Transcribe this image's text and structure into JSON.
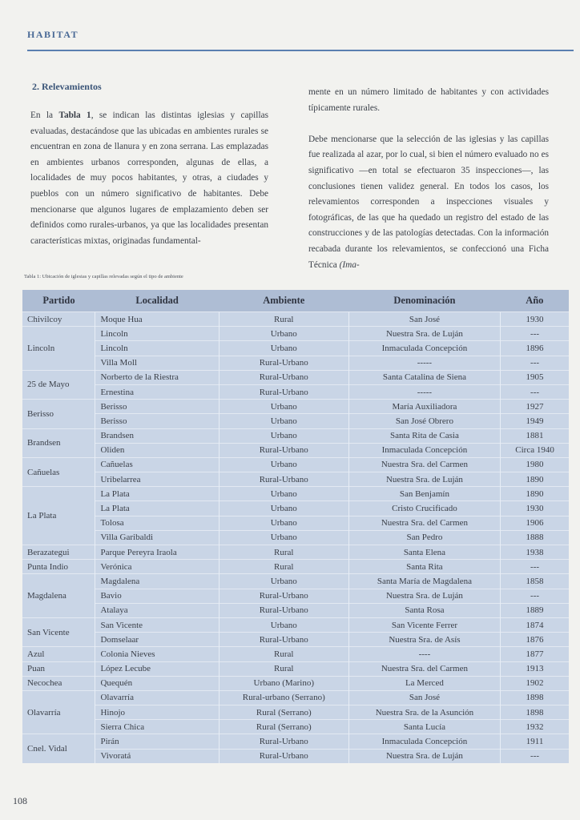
{
  "header": {
    "title": "HABITAT"
  },
  "section": {
    "title": "2. Relevamientos"
  },
  "left_column": {
    "parts": [
      "En la ",
      "Tabla 1",
      ", se indican las distintas iglesias y capillas evaluadas, destacándose que las ubicadas en ambientes rurales se encuentran en zona de llanura y en zona serrana. Las emplazadas en ambientes urbanos corresponden, algunas de ellas, a localidades de muy pocos habitantes, y otras, a ciudades y pueblos con un número significativo de habitantes. Debe mencionarse que algunos lugares de emplazamiento deben ser definidos como rurales-urbanos, ya que las localidades presentan características mixtas, originadas fundamental-"
    ]
  },
  "right_column": {
    "paragraph_1": "mente en un número limitado de habitantes y con actividades típicamente rurales.",
    "paragraph_2": [
      "Debe mencionarse que la selección de las iglesias y las capillas fue realizada al azar, por lo cual, si bien el número evaluado no es significativo —en total se efectuaron 35 inspecciones—, las conclusiones tienen validez general. En todos los casos, los relevamientos corresponden a inspecciones visuales y fotográficas, de las que ha quedado un registro del estado de las construcciones y de las patologías detectadas. Con la información recabada durante los relevamientos, se confeccionó una Ficha Técnica ",
      "(Ima-"
    ]
  },
  "table": {
    "caption": "Tabla 1: Ubicación de iglesias y capillas relevadas según el tipo de ambiente",
    "columns": [
      "Partido",
      "Localidad",
      "Ambiente",
      "Denominación",
      "Año"
    ],
    "groups": [
      {
        "partido": "Chivilcoy",
        "rows": [
          [
            "Moque Hua",
            "Rural",
            "San José",
            "1930"
          ]
        ]
      },
      {
        "partido": "Lincoln",
        "rows": [
          [
            "Lincoln",
            "Urbano",
            "Nuestra Sra. de Luján",
            "---"
          ],
          [
            "Lincoln",
            "Urbano",
            "Inmaculada Concepción",
            "1896"
          ],
          [
            "Villa Moll",
            "Rural-Urbano",
            "-----",
            "---"
          ]
        ]
      },
      {
        "partido": "25 de Mayo",
        "rows": [
          [
            "Norberto de la Riestra",
            "Rural-Urbano",
            "Santa Catalina de Siena",
            "1905"
          ],
          [
            "Ernestina",
            "Rural-Urbano",
            "-----",
            "---"
          ]
        ]
      },
      {
        "partido": "Berisso",
        "rows": [
          [
            "Berisso",
            "Urbano",
            "María Auxiliadora",
            "1927"
          ],
          [
            "Berisso",
            "Urbano",
            "San José Obrero",
            "1949"
          ]
        ]
      },
      {
        "partido": "Brandsen",
        "rows": [
          [
            "Brandsen",
            "Urbano",
            "Santa Rita de Casia",
            "1881"
          ],
          [
            "Oliden",
            "Rural-Urbano",
            "Inmaculada Concepción",
            "Circa 1940"
          ]
        ]
      },
      {
        "partido": "Cañuelas",
        "rows": [
          [
            "Cañuelas",
            "Urbano",
            "Nuestra Sra. del Carmen",
            "1980"
          ],
          [
            "Uribelarrea",
            "Rural-Urbano",
            "Nuestra Sra. de Luján",
            "1890"
          ]
        ]
      },
      {
        "partido": "La Plata",
        "rows": [
          [
            "La Plata",
            "Urbano",
            "San Benjamín",
            "1890"
          ],
          [
            "La Plata",
            "Urbano",
            "Cristo Crucificado",
            "1930"
          ],
          [
            "Tolosa",
            "Urbano",
            "Nuestra Sra. del Carmen",
            "1906"
          ],
          [
            "Villa Garibaldi",
            "Urbano",
            "San Pedro",
            "1888"
          ]
        ]
      },
      {
        "partido": "Berazategui",
        "rows": [
          [
            "Parque Pereyra Iraola",
            "Rural",
            "Santa Elena",
            "1938"
          ]
        ]
      },
      {
        "partido": "Punta Indio",
        "rows": [
          [
            "Verónica",
            "Rural",
            "Santa Rita",
            "---"
          ]
        ]
      },
      {
        "partido": "Magdalena",
        "rows": [
          [
            "Magdalena",
            "Urbano",
            "Santa María de Magdalena",
            "1858"
          ],
          [
            "Bavio",
            "Rural-Urbano",
            "Nuestra Sra. de Luján",
            "---"
          ],
          [
            "Atalaya",
            "Rural-Urbano",
            "Santa Rosa",
            "1889"
          ]
        ]
      },
      {
        "partido": "San Vicente",
        "rows": [
          [
            "San Vicente",
            "Urbano",
            "San Vicente Ferrer",
            "1874"
          ],
          [
            "Domselaar",
            "Rural-Urbano",
            "Nuestra Sra. de Asís",
            "1876"
          ]
        ]
      },
      {
        "partido": "Azul",
        "rows": [
          [
            "Colonia Nieves",
            "Rural",
            "----",
            "1877"
          ]
        ]
      },
      {
        "partido": "Puan",
        "rows": [
          [
            "López Lecube",
            "Rural",
            "Nuestra Sra. del Carmen",
            "1913"
          ]
        ]
      },
      {
        "partido": "Necochea",
        "rows": [
          [
            "Quequén",
            "Urbano (Marino)",
            "La Merced",
            "1902"
          ]
        ]
      },
      {
        "partido": "Olavarría",
        "rows": [
          [
            "Olavarría",
            "Rural-urbano (Serrano)",
            "San José",
            "1898"
          ],
          [
            "Hinojo",
            "Rural (Serrano)",
            "Nuestra Sra. de la Asunción",
            "1898"
          ],
          [
            "Sierra Chica",
            "Rural (Serrano)",
            "Santa Lucía",
            "1932"
          ]
        ]
      },
      {
        "partido": "Cnel. Vidal",
        "rows": [
          [
            "Pirán",
            "Rural-Urbano",
            "Inmaculada Concepción",
            "1911"
          ],
          [
            "Vivoratá",
            "Rural-Urbano",
            "Nuestra Sra. de Luján",
            "---"
          ]
        ]
      }
    ]
  },
  "footer": {
    "page_number": "108"
  }
}
